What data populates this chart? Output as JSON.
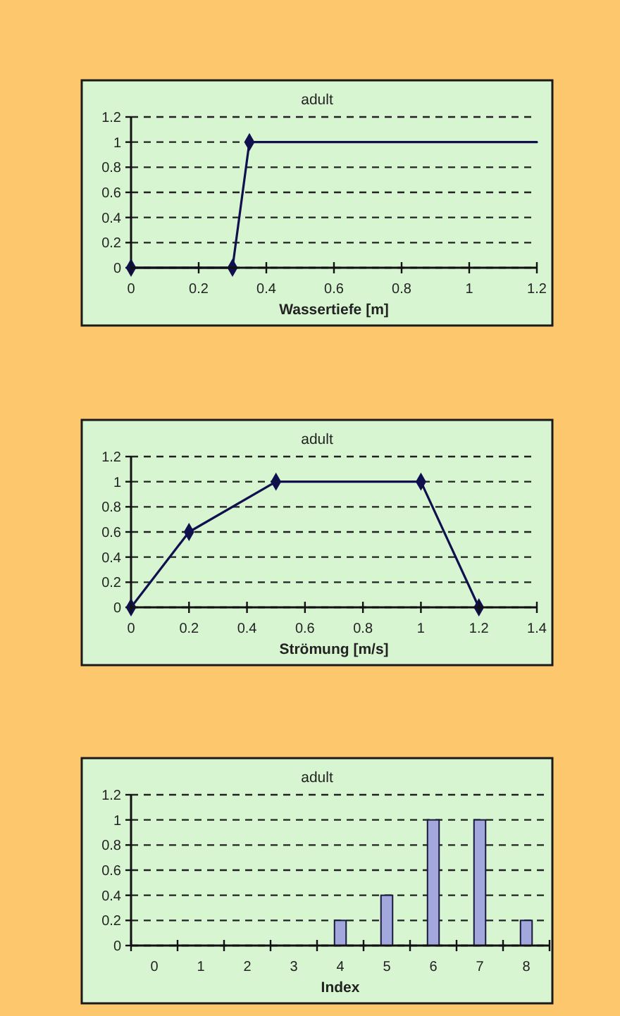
{
  "chart_data": [
    {
      "type": "line",
      "title": "adult",
      "xlabel": "Wassertiefe [m]",
      "marker": "diamond",
      "series": [
        {
          "color": "#10104e",
          "x": [
            0,
            0.3,
            0.35
          ],
          "values": [
            0,
            0,
            1
          ]
        },
        {
          "color": "#10104e",
          "x": [
            0.35,
            1.2
          ],
          "values": [
            1,
            1
          ],
          "marker": "none"
        }
      ],
      "xlim": [
        0,
        1.2
      ],
      "xticks": [
        0,
        0.2,
        0.4,
        0.6,
        0.8,
        1,
        1.2
      ],
      "ylim": [
        0,
        1.2
      ],
      "yticks": [
        0,
        0.2,
        0.4,
        0.6,
        0.8,
        1,
        1.2
      ],
      "grid": "y"
    },
    {
      "type": "line",
      "title": "adult",
      "xlabel": "Strömung [m/s]",
      "marker": "diamond",
      "series": [
        {
          "color": "#10104e",
          "x": [
            0,
            0.2,
            0.5,
            1,
            1.2
          ],
          "values": [
            0,
            0.6,
            1,
            1,
            0
          ]
        }
      ],
      "xlim": [
        0,
        1.4
      ],
      "xticks": [
        0,
        0.2,
        0.4,
        0.6,
        0.8,
        1,
        1.2,
        1.4
      ],
      "ylim": [
        0,
        1.2
      ],
      "yticks": [
        0,
        0.2,
        0.4,
        0.6,
        0.8,
        1,
        1.2
      ],
      "grid": "y"
    },
    {
      "type": "bar",
      "title": "adult",
      "xlabel": "Index",
      "categories": [
        "0",
        "1",
        "2",
        "3",
        "4",
        "5",
        "6",
        "7",
        "8"
      ],
      "values": [
        0,
        0,
        0,
        0,
        0.2,
        0.4,
        1,
        1,
        0.2
      ],
      "color": "#a3a8dc",
      "ylim": [
        0,
        1.2
      ],
      "yticks": [
        0,
        0.2,
        0.4,
        0.6,
        0.8,
        1,
        1.2
      ],
      "grid": "y"
    }
  ]
}
